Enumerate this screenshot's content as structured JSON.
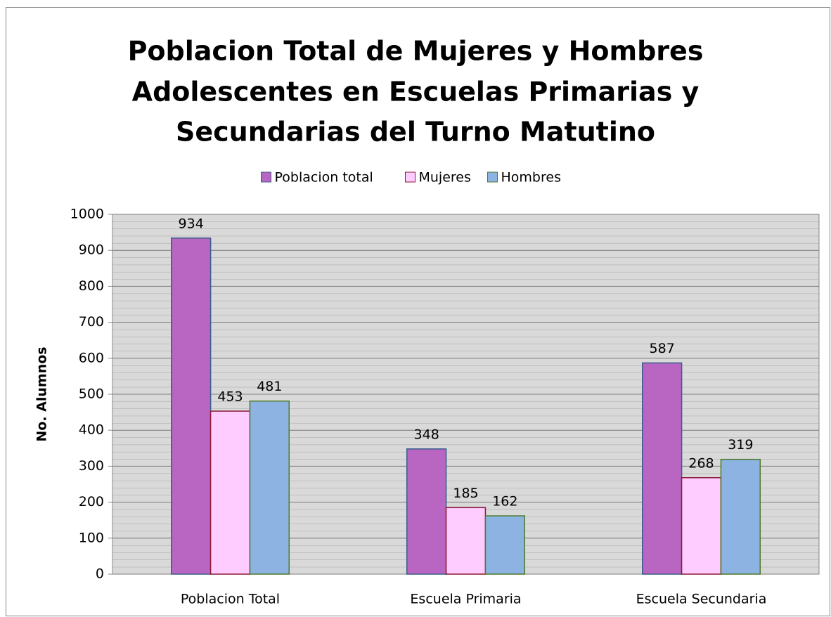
{
  "chart_data": {
    "type": "bar",
    "title": [
      "Poblacion Total de Mujeres y Hombres",
      "Adolescentes en Escuelas Primarias y",
      "Secundarias del Turno Matutino"
    ],
    "ylabel": "No. Alumnos",
    "categories": [
      "Poblacion Total",
      "Escuela Primaria",
      "Escuela Secundaria"
    ],
    "series": [
      {
        "name": "Poblacion total",
        "color": "#b866c2",
        "values": [
          934,
          348,
          587
        ]
      },
      {
        "name": "Mujeres",
        "color": "#ffccff",
        "values": [
          453,
          185,
          268
        ]
      },
      {
        "name": "Hombres",
        "color": "#8db3e2",
        "values": [
          481,
          162,
          319
        ]
      }
    ],
    "ylim": [
      0,
      1000
    ],
    "yticks": [
      0,
      100,
      200,
      300,
      400,
      500,
      600,
      700,
      800,
      900,
      1000
    ],
    "grid": true,
    "legend": "top"
  }
}
